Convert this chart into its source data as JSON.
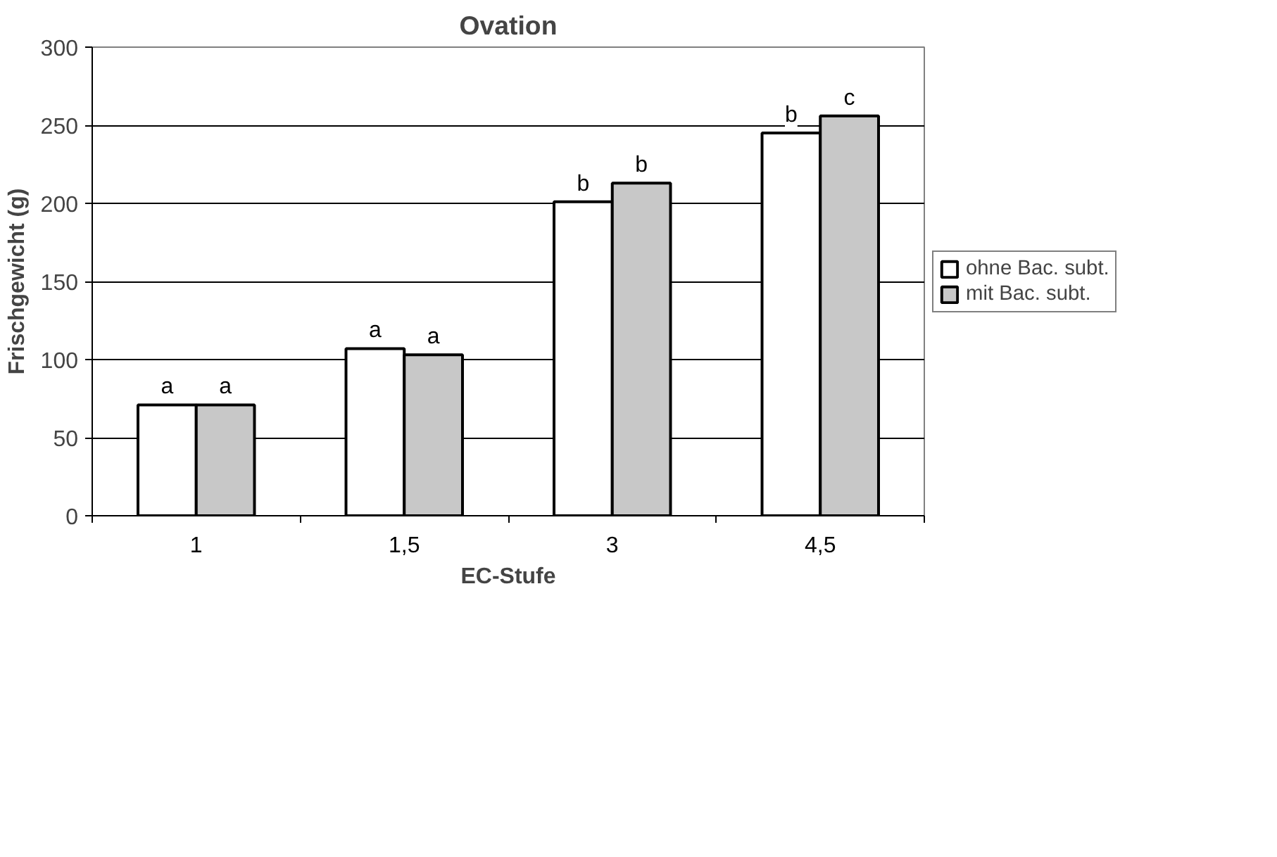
{
  "chart_data": {
    "type": "bar",
    "title": "Ovation",
    "xlabel": "EC-Stufe",
    "ylabel": "Frischgewicht (g)",
    "categories": [
      "1",
      "1,5",
      "3",
      "4,5"
    ],
    "series": [
      {
        "name": "ohne Bac. subt.",
        "color": "#ffffff",
        "values": [
          71,
          107,
          201,
          245
        ],
        "value_labels": [
          "a",
          "a",
          "b",
          "b"
        ]
      },
      {
        "name": "mit Bac. subt.",
        "color": "#c8c8c8",
        "values": [
          71,
          103,
          213,
          256
        ],
        "value_labels": [
          "a",
          "a",
          "b",
          "c"
        ]
      }
    ],
    "ylim": [
      0,
      300
    ],
    "yticks": [
      0,
      50,
      100,
      150,
      200,
      250,
      300
    ],
    "grid": "y",
    "legend": "right"
  }
}
